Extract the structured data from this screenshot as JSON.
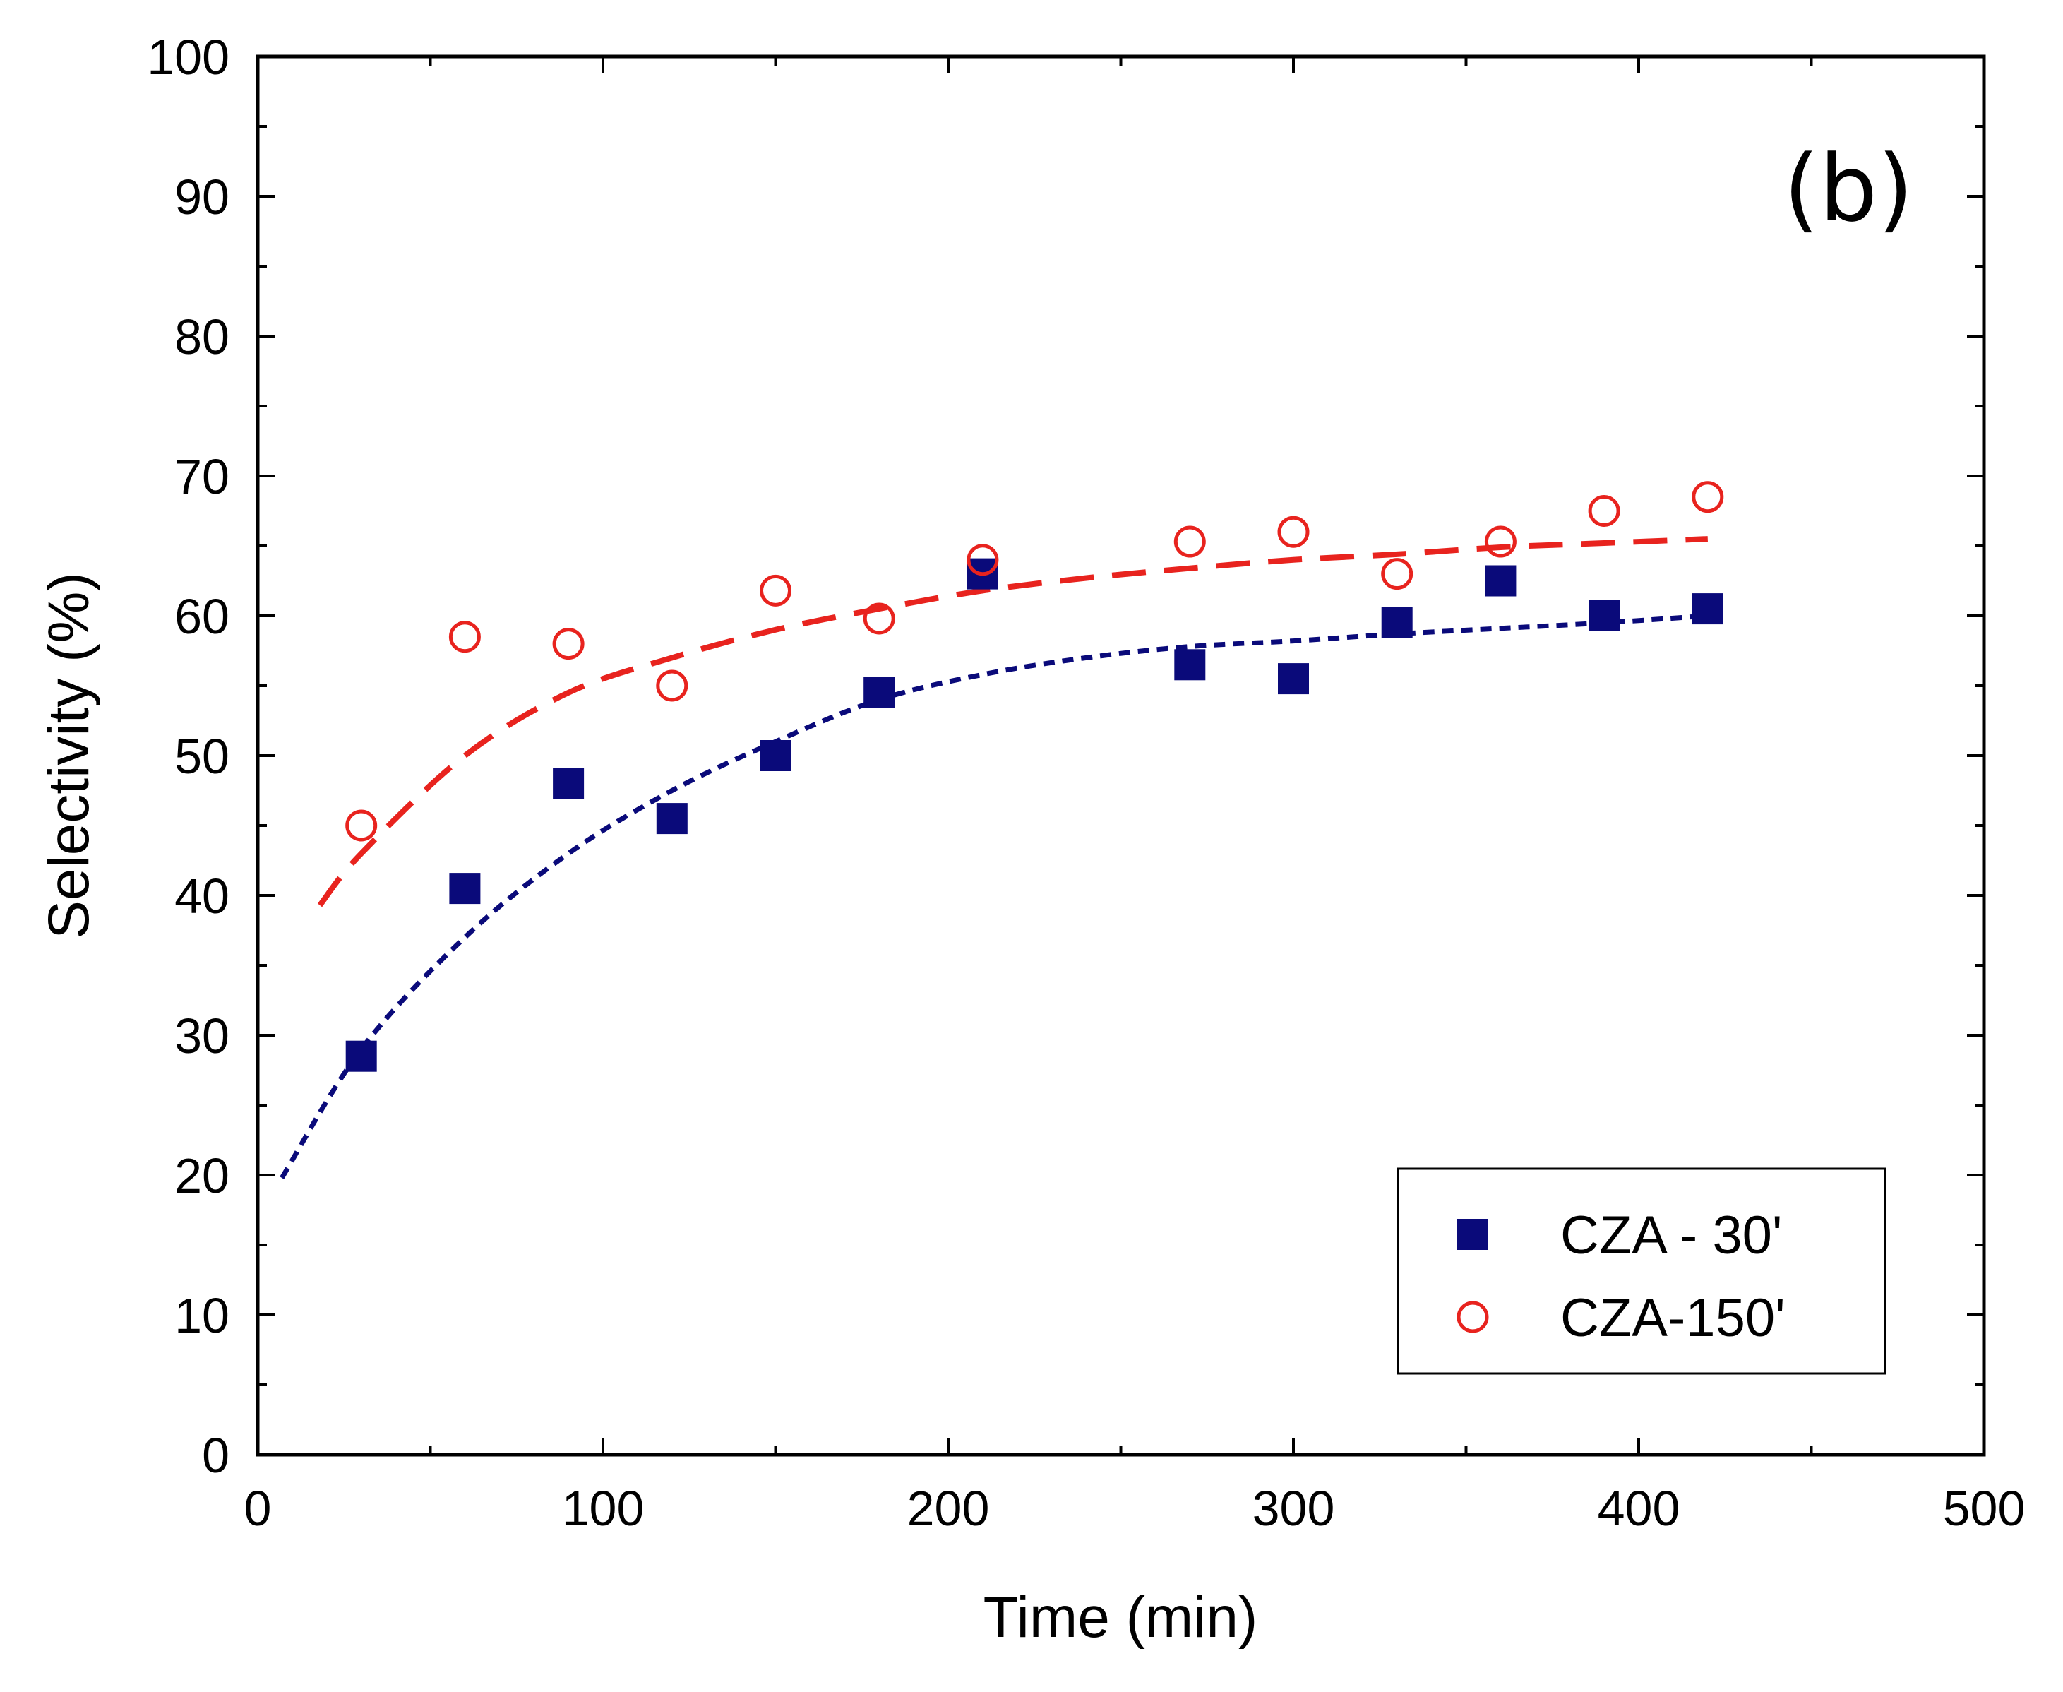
{
  "chart_data": {
    "type": "scatter",
    "panel_label": "(b)",
    "xlabel": "Time (min)",
    "ylabel": "Selectivity (%)",
    "xlim": [
      0,
      500
    ],
    "ylim": [
      0,
      100
    ],
    "x_ticks": [
      0,
      100,
      200,
      300,
      400,
      500
    ],
    "y_ticks": [
      0,
      10,
      20,
      30,
      40,
      50,
      60,
      70,
      80,
      90,
      100
    ],
    "x_minor_step": 50,
    "y_minor_step": 5,
    "grid": false,
    "legend_position": "bottom-right",
    "series": [
      {
        "name": "CZA - 30'",
        "marker": "filled-square",
        "color": "#0a0a7a",
        "x": [
          30,
          60,
          90,
          120,
          150,
          180,
          210,
          270,
          300,
          330,
          360,
          390,
          420
        ],
        "y": [
          28.5,
          40.5,
          48,
          45.5,
          50,
          54.5,
          63,
          56.5,
          55.5,
          59.5,
          62.5,
          60,
          60.5
        ],
        "fit": {
          "style": "short-dash",
          "color": "#0a0a7a",
          "x": [
            7,
            30,
            60,
            90,
            120,
            150,
            180,
            210,
            240,
            270,
            300,
            330,
            360,
            390,
            420
          ],
          "y": [
            19.8,
            29,
            37,
            43,
            47.5,
            51,
            54,
            55.8,
            57,
            57.8,
            58.2,
            58.7,
            59.1,
            59.5,
            60
          ]
        }
      },
      {
        "name": "CZA-150'",
        "marker": "open-circle",
        "color": "#e8231e",
        "x": [
          30,
          60,
          90,
          120,
          150,
          180,
          210,
          270,
          300,
          330,
          360,
          390,
          420
        ],
        "y": [
          45,
          58.5,
          58,
          55,
          61.8,
          59.8,
          64,
          65.3,
          66,
          63,
          65.3,
          67.5,
          68.5
        ],
        "fit": {
          "style": "long-dash",
          "color": "#e8231e",
          "x": [
            18,
            30,
            60,
            90,
            120,
            150,
            180,
            210,
            240,
            270,
            300,
            330,
            360,
            390,
            420
          ],
          "y": [
            39.3,
            43,
            50,
            54.5,
            57,
            59,
            60.5,
            61.8,
            62.7,
            63.4,
            64,
            64.4,
            64.9,
            65.2,
            65.5
          ]
        }
      }
    ]
  }
}
